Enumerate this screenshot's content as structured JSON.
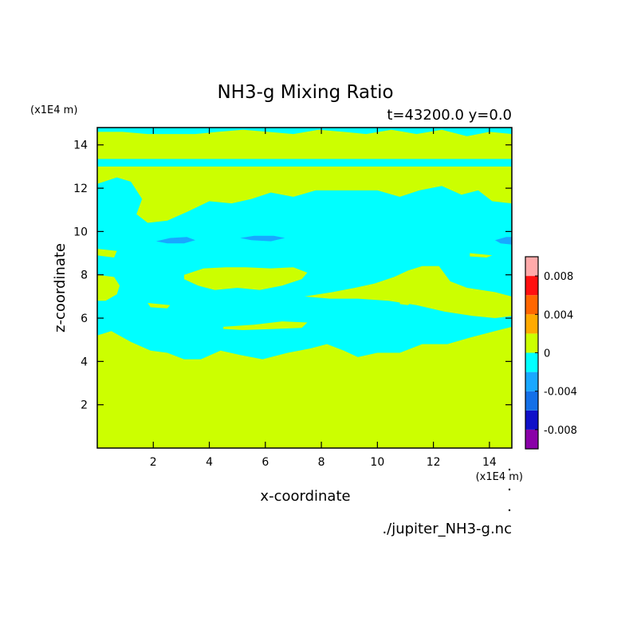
{
  "chart_data": {
    "type": "heatmap",
    "title": "NH3-g Mixing Ratio",
    "subtitle": "t=43200.0 y=0.0",
    "xlabel": "x-coordinate",
    "ylabel": "z-coordinate",
    "x_unit": "(x1E4 m)",
    "y_unit": "(x1E4 m)",
    "xlim": [
      0,
      14.8
    ],
    "ylim": [
      0,
      14.8
    ],
    "xticks": [
      2,
      4,
      6,
      8,
      10,
      12,
      14
    ],
    "yticks": [
      2,
      4,
      6,
      8,
      10,
      12,
      14
    ],
    "footer": "./jupiter_NH3-g.nc",
    "colorbar": {
      "range": [
        -0.01,
        0.01
      ],
      "levels": [
        -0.01,
        -0.008,
        -0.006,
        -0.004,
        -0.002,
        0,
        0.002,
        0.004,
        0.006,
        0.008,
        0.01
      ],
      "colors": [
        "#8a00a8",
        "#1010c8",
        "#1470e8",
        "#18a8ff",
        "#00ffff",
        "#ccff00",
        "#ffaa00",
        "#ff6600",
        "#ff1010",
        "#ffaaaa"
      ],
      "tick_values": [
        0.008,
        0.004,
        0,
        -0.004,
        -0.008
      ],
      "tick_labels": [
        "0.008",
        "0.004",
        "0",
        "-0.004",
        "-0.008"
      ]
    },
    "background_color": "#ccff00",
    "regions": [
      {
        "level": "-0.002..0",
        "color": "#00ffff",
        "x": [
          0,
          0.7,
          1.2,
          1.6,
          1.4,
          1.8,
          2.5,
          3.2,
          4,
          4.8,
          5.5,
          6.2,
          7,
          7.8,
          8.5,
          9.3,
          10,
          10.8,
          11.5,
          12.3,
          13,
          13.6,
          14.1,
          14.8,
          14.8,
          14.2,
          13.3,
          12.5,
          11.6,
          10.8,
          10,
          9.3,
          8.8,
          8.2,
          7.6,
          6.8,
          5.9,
          5.1,
          4.4,
          3.7,
          3.1,
          2.5,
          1.9,
          1.2,
          0.5,
          0
        ],
        "y": [
          12.2,
          12.5,
          12.3,
          11.5,
          10.8,
          10.4,
          10.5,
          10.9,
          11.4,
          11.3,
          11.5,
          11.8,
          11.6,
          11.9,
          11.9,
          11.9,
          11.9,
          11.6,
          11.9,
          12.1,
          11.7,
          11.9,
          11.4,
          11.3,
          5.6,
          5.4,
          5.1,
          4.8,
          4.8,
          4.4,
          4.4,
          4.2,
          4.5,
          4.8,
          4.6,
          4.4,
          4.1,
          4.3,
          4.5,
          4.1,
          4.1,
          4.4,
          4.5,
          4.9,
          5.4,
          5.2
        ]
      },
      {
        "level": "-0.002..0",
        "color": "#00ffff",
        "x": [
          0,
          14.8,
          14.8,
          0
        ],
        "y": [
          13.0,
          13.0,
          13.35,
          13.35
        ]
      },
      {
        "level": "-0.002..0",
        "color": "#00ffff",
        "x": [
          0,
          1,
          2,
          2.8,
          3.6,
          4.5,
          5.2,
          6.1,
          7,
          7.9,
          8.8,
          9.6,
          10.5,
          11.4,
          12.3,
          13.2,
          14.1,
          14.8,
          14.8,
          14.0,
          13.2,
          12.3,
          11.4,
          10.5,
          9.6,
          8.8,
          7.9,
          7.0,
          6.1,
          5.2,
          4.3,
          3.5,
          2.6,
          1.8,
          0.9,
          0
        ],
        "y": [
          14.95,
          14.95,
          14.95,
          14.95,
          14.95,
          14.95,
          14.95,
          14.95,
          14.95,
          14.95,
          14.95,
          14.95,
          14.95,
          14.95,
          14.95,
          14.95,
          14.95,
          14.95,
          14.5,
          14.6,
          14.4,
          14.7,
          14.5,
          14.7,
          14.5,
          14.6,
          14.7,
          14.5,
          14.6,
          14.7,
          14.6,
          14.5,
          14.5,
          14.5,
          14.6,
          14.6
        ]
      },
      {
        "level": "0..0.002",
        "color": "#ccff00",
        "x": [
          0,
          14.8,
          14.8,
          0
        ],
        "y": [
          14.05,
          14.05,
          14.4,
          14.4
        ]
      },
      {
        "level": "0..0.002",
        "color": "#ccff00",
        "x": [
          3.1,
          3.8,
          4.6,
          5.3,
          6.2,
          7.0,
          7.5,
          7.3,
          6.6,
          5.8,
          5.0,
          4.2,
          3.6,
          3.1
        ],
        "y": [
          8.0,
          8.3,
          8.35,
          8.35,
          8.3,
          8.35,
          8.1,
          7.8,
          7.5,
          7.3,
          7.4,
          7.3,
          7.5,
          7.8
        ]
      },
      {
        "level": "0..0.002",
        "color": "#ccff00",
        "x": [
          7.4,
          8.4,
          9.2,
          9.9,
          10.6,
          11.1,
          11.6,
          12.2,
          12.6,
          13.2,
          14.2,
          14.8,
          14.8,
          14.2,
          13.4,
          12.4,
          11.4,
          10.4,
          9.3,
          8.3,
          7.4
        ],
        "y": [
          7.0,
          7.2,
          7.4,
          7.6,
          7.9,
          8.2,
          8.4,
          8.4,
          7.7,
          7.4,
          7.2,
          7.0,
          6.1,
          6.0,
          6.1,
          6.3,
          6.6,
          6.8,
          6.9,
          6.9,
          7.0
        ]
      },
      {
        "level": "0..0.002",
        "color": "#ccff00",
        "x": [
          0,
          0.6,
          0.8,
          0.7,
          0.3,
          0
        ],
        "y": [
          8.0,
          7.9,
          7.5,
          7.1,
          6.8,
          6.8
        ]
      },
      {
        "level": "0..0.002",
        "color": "#ccff00",
        "x": [
          0,
          0.7,
          0.6,
          0
        ],
        "y": [
          9.2,
          9.1,
          8.8,
          8.9
        ]
      },
      {
        "level": "0..0.002",
        "color": "#ccff00",
        "x": [
          1.8,
          2.6,
          2.5,
          1.9
        ],
        "y": [
          6.7,
          6.6,
          6.45,
          6.5
        ]
      },
      {
        "level": "0..0.002",
        "color": "#ccff00",
        "x": [
          4.5,
          5.6,
          6.6,
          7.5,
          7.3,
          6.3,
          5.2,
          4.5
        ],
        "y": [
          5.6,
          5.7,
          5.85,
          5.8,
          5.55,
          5.5,
          5.45,
          5.5
        ]
      },
      {
        "level": "0..0.002",
        "color": "#ccff00",
        "x": [
          13.3,
          14.1,
          13.9,
          13.3
        ],
        "y": [
          9.0,
          8.9,
          8.8,
          8.85
        ]
      },
      {
        "level": "0..0.002",
        "color": "#ccff00",
        "x": [
          10.8,
          11.3,
          11.1,
          10.8
        ],
        "y": [
          6.8,
          6.9,
          6.6,
          6.65
        ]
      },
      {
        "level": "-0.004..-0.002",
        "color": "#18a8ff",
        "x": [
          2.1,
          2.6,
          3.2,
          3.5,
          3.1,
          2.5,
          2.1
        ],
        "y": [
          9.55,
          9.7,
          9.75,
          9.6,
          9.45,
          9.45,
          9.55
        ]
      },
      {
        "level": "-0.004..-0.002",
        "color": "#18a8ff",
        "x": [
          5.1,
          5.6,
          6.3,
          6.7,
          6.2,
          5.5,
          5.1
        ],
        "y": [
          9.7,
          9.8,
          9.8,
          9.7,
          9.55,
          9.6,
          9.7
        ]
      },
      {
        "level": "-0.004..-0.002",
        "color": "#18a8ff",
        "x": [
          14.2,
          14.6,
          14.8,
          14.8,
          14.4,
          14.2
        ],
        "y": [
          9.6,
          9.75,
          9.75,
          9.4,
          9.45,
          9.6
        ]
      }
    ]
  }
}
